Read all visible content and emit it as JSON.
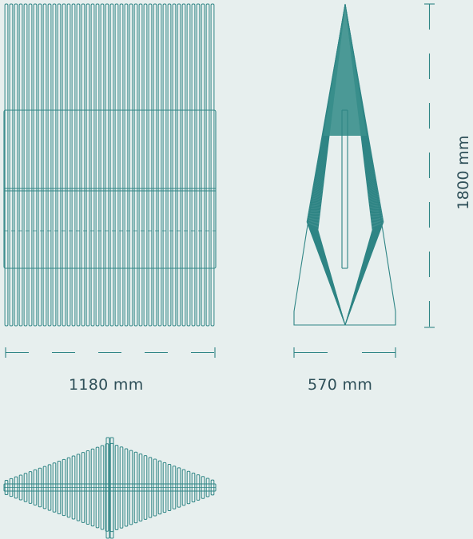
{
  "dimensions": {
    "width": "1180 mm",
    "depth": "570 mm",
    "height": "1800 mm"
  },
  "colors": {
    "background": "#e7efee",
    "line": "#2f8585",
    "fill": "#3a8f8c",
    "text": "#2e4f58"
  }
}
